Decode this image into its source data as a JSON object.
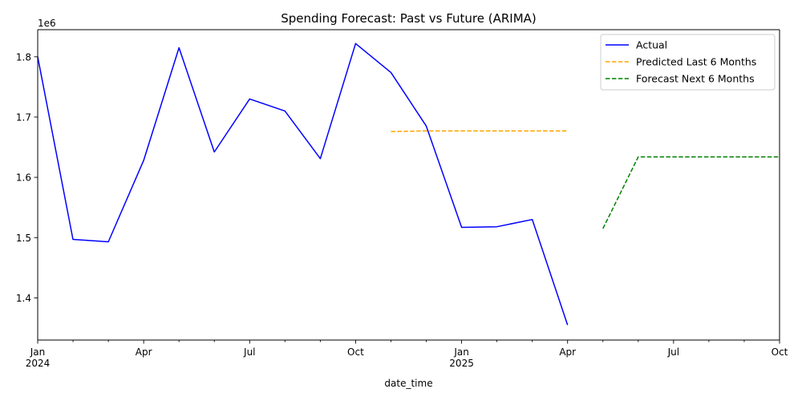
{
  "chart_data": {
    "type": "line",
    "title": "Spending Forecast: Past vs Future (ARIMA)",
    "xlabel": "date_time",
    "ylabel": "",
    "y_offset_label": "1e6",
    "y_scale_factor": 1000000,
    "xlim": [
      "2024-01",
      "2025-10"
    ],
    "ylim": [
      1330000,
      1845000
    ],
    "grid": false,
    "legend_position": "top-right",
    "x_ticks": [
      {
        "date": "2024-01",
        "label": "Jan",
        "sublabel": "2024",
        "major": true
      },
      {
        "date": "2024-02",
        "major": false
      },
      {
        "date": "2024-03",
        "major": false
      },
      {
        "date": "2024-04",
        "label": "Apr",
        "major": true
      },
      {
        "date": "2024-05",
        "major": false
      },
      {
        "date": "2024-06",
        "major": false
      },
      {
        "date": "2024-07",
        "label": "Jul",
        "major": true
      },
      {
        "date": "2024-08",
        "major": false
      },
      {
        "date": "2024-09",
        "major": false
      },
      {
        "date": "2024-10",
        "label": "Oct",
        "major": true
      },
      {
        "date": "2024-11",
        "major": false
      },
      {
        "date": "2024-12",
        "major": false
      },
      {
        "date": "2025-01",
        "label": "Jan",
        "sublabel": "2025",
        "major": true
      },
      {
        "date": "2025-02",
        "major": false
      },
      {
        "date": "2025-03",
        "major": false
      },
      {
        "date": "2025-04",
        "label": "Apr",
        "major": true
      },
      {
        "date": "2025-05",
        "major": false
      },
      {
        "date": "2025-06",
        "major": false
      },
      {
        "date": "2025-07",
        "label": "Jul",
        "major": true
      },
      {
        "date": "2025-08",
        "major": false
      },
      {
        "date": "2025-09",
        "major": false
      },
      {
        "date": "2025-10",
        "label": "Oct",
        "major": true
      }
    ],
    "y_ticks": [
      {
        "value": 1400000,
        "label": "1.4"
      },
      {
        "value": 1500000,
        "label": "1.5"
      },
      {
        "value": 1600000,
        "label": "1.6"
      },
      {
        "value": 1700000,
        "label": "1.7"
      },
      {
        "value": 1800000,
        "label": "1.8"
      }
    ],
    "series": [
      {
        "name": "Actual",
        "color": "#0000ff",
        "dash": false,
        "points": [
          {
            "x": "2024-01",
            "y": 1800000
          },
          {
            "x": "2024-02",
            "y": 1497000
          },
          {
            "x": "2024-03",
            "y": 1493000
          },
          {
            "x": "2024-04",
            "y": 1628000
          },
          {
            "x": "2024-05",
            "y": 1815000
          },
          {
            "x": "2024-06",
            "y": 1642000
          },
          {
            "x": "2024-07",
            "y": 1730000
          },
          {
            "x": "2024-08",
            "y": 1710000
          },
          {
            "x": "2024-09",
            "y": 1631000
          },
          {
            "x": "2024-10",
            "y": 1822000
          },
          {
            "x": "2024-11",
            "y": 1774000
          },
          {
            "x": "2024-12",
            "y": 1685000
          },
          {
            "x": "2025-01",
            "y": 1517000
          },
          {
            "x": "2025-02",
            "y": 1518000
          },
          {
            "x": "2025-03",
            "y": 1530000
          },
          {
            "x": "2025-04",
            "y": 1355000
          }
        ]
      },
      {
        "name": "Predicted Last 6 Months",
        "color": "#ffa500",
        "dash": true,
        "points": [
          {
            "x": "2024-11",
            "y": 1676000
          },
          {
            "x": "2024-12",
            "y": 1677000
          },
          {
            "x": "2025-01",
            "y": 1677000
          },
          {
            "x": "2025-02",
            "y": 1677000
          },
          {
            "x": "2025-03",
            "y": 1677000
          },
          {
            "x": "2025-04",
            "y": 1677000
          }
        ]
      },
      {
        "name": "Forecast Next 6 Months",
        "color": "#008000",
        "dash": true,
        "points": [
          {
            "x": "2025-05",
            "y": 1515000
          },
          {
            "x": "2025-06",
            "y": 1634000
          },
          {
            "x": "2025-07",
            "y": 1634000
          },
          {
            "x": "2025-08",
            "y": 1634000
          },
          {
            "x": "2025-09",
            "y": 1634000
          },
          {
            "x": "2025-10",
            "y": 1634000
          }
        ]
      }
    ]
  }
}
